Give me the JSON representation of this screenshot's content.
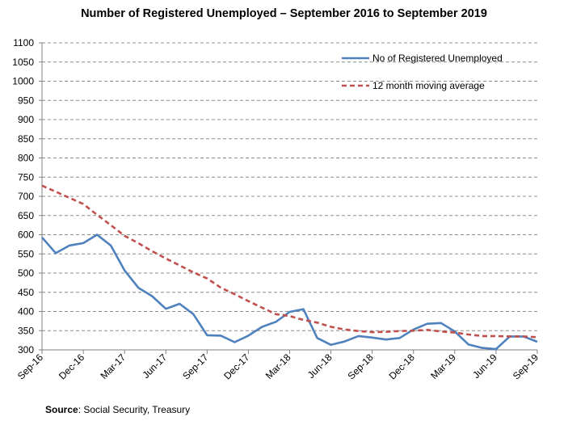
{
  "source_label": "Source",
  "source_text": ": Social Security, Treasury",
  "chart_data": {
    "type": "line",
    "title": "Number of Registered Unemployed – September 2016 to September 2019",
    "xlabel": "",
    "ylabel": "",
    "ylim": [
      300,
      1100
    ],
    "yticks": [
      300,
      350,
      400,
      450,
      500,
      550,
      600,
      650,
      700,
      750,
      800,
      850,
      900,
      950,
      1000,
      1050,
      1100
    ],
    "grid": "horizontal dashed",
    "legend_position": "top-right",
    "x": [
      "Sep-16",
      "Oct-16",
      "Nov-16",
      "Dec-16",
      "Jan-17",
      "Feb-17",
      "Mar-17",
      "Apr-17",
      "May-17",
      "Jun-17",
      "Jul-17",
      "Aug-17",
      "Sep-17",
      "Oct-17",
      "Nov-17",
      "Dec-17",
      "Jan-18",
      "Feb-18",
      "Mar-18",
      "Apr-18",
      "May-18",
      "Jun-18",
      "Jul-18",
      "Aug-18",
      "Sep-18",
      "Oct-18",
      "Nov-18",
      "Dec-18",
      "Jan-19",
      "Feb-19",
      "Mar-19",
      "Apr-19",
      "May-19",
      "Jun-19",
      "Jul-19",
      "Aug-19",
      "Sep-19"
    ],
    "xtick_labels": [
      "Sep-16",
      "Dec-16",
      "Mar-17",
      "Jun-17",
      "Sep-17",
      "Dec-17",
      "Mar-18",
      "Jun-18",
      "Sep-18",
      "Dec-18",
      "Mar-19",
      "Jun-19",
      "Sep-19"
    ],
    "series": [
      {
        "name": "No of Registered Unemployed",
        "color": "#4f81bd",
        "style": "solid",
        "values": [
          593,
          552,
          572,
          578,
          600,
          572,
          507,
          462,
          440,
          407,
          420,
          393,
          338,
          337,
          320,
          337,
          360,
          373,
          399,
          406,
          331,
          313,
          322,
          336,
          332,
          327,
          331,
          353,
          368,
          370,
          348,
          314,
          305,
          302,
          335,
          335,
          321
        ]
      },
      {
        "name": "12 month moving average",
        "color": "#c0504d",
        "style": "dashed",
        "values": [
          728,
          712,
          696,
          680,
          652,
          625,
          597,
          578,
          557,
          538,
          520,
          502,
          486,
          462,
          445,
          427,
          410,
          393,
          388,
          378,
          371,
          360,
          353,
          349,
          346,
          347,
          349,
          350,
          352,
          348,
          345,
          340,
          336,
          336,
          335,
          335,
          333
        ]
      }
    ]
  }
}
